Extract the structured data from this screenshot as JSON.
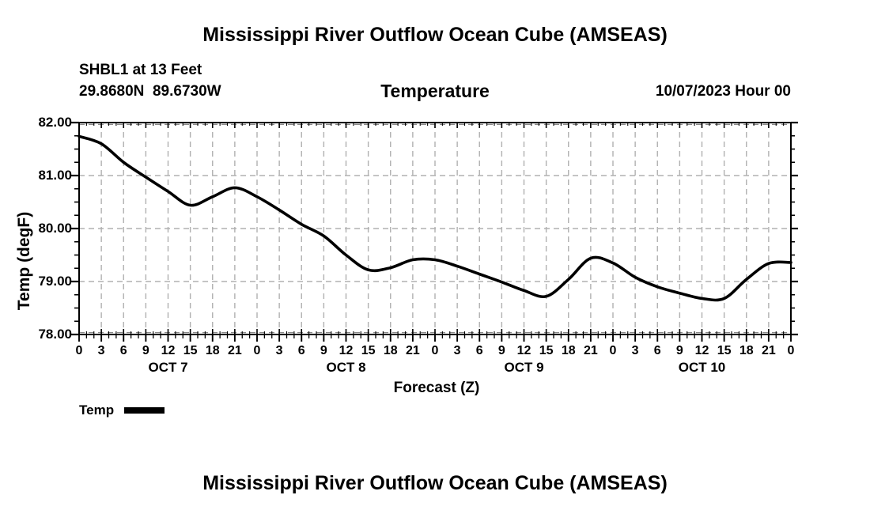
{
  "page": {
    "top_title": "Mississippi River Outflow Ocean Cube (AMSEAS)",
    "bottom_title": "Mississippi River Outflow Ocean Cube (AMSEAS)"
  },
  "header": {
    "station": "SHBL1 at 13 Feet",
    "coordinates": "29.8680N  89.6730W",
    "plot_title": "Temperature",
    "run_date": "10/07/2023 Hour 00"
  },
  "chart_data": {
    "type": "line",
    "title": "Temperature",
    "xlabel": "Forecast (Z)",
    "ylabel": "Temp (degF)",
    "xlim_hours": [
      0,
      96
    ],
    "ylim": [
      78.0,
      82.0
    ],
    "x_major_step_hours": 3,
    "x_minor_step_hours": 1,
    "y_major_step": 1.0,
    "y_minor_step": 0.25,
    "grid": true,
    "grid_color": "#b0b0b0",
    "line_color": "#000000",
    "legend_position": "bottom-left",
    "y_ticks": [
      {
        "value": 82.0,
        "label": "82.00"
      },
      {
        "value": 81.0,
        "label": "81.00"
      },
      {
        "value": 80.0,
        "label": "80.00"
      },
      {
        "value": 79.0,
        "label": "79.00"
      },
      {
        "value": 78.0,
        "label": "78.00"
      }
    ],
    "x_ticks": [
      {
        "hour": 0,
        "label": "0"
      },
      {
        "hour": 3,
        "label": "3"
      },
      {
        "hour": 6,
        "label": "6"
      },
      {
        "hour": 9,
        "label": "9"
      },
      {
        "hour": 12,
        "label": "12"
      },
      {
        "hour": 15,
        "label": "15"
      },
      {
        "hour": 18,
        "label": "18"
      },
      {
        "hour": 21,
        "label": "21"
      },
      {
        "hour": 24,
        "label": "0"
      },
      {
        "hour": 27,
        "label": "3"
      },
      {
        "hour": 30,
        "label": "6"
      },
      {
        "hour": 33,
        "label": "9"
      },
      {
        "hour": 36,
        "label": "12"
      },
      {
        "hour": 39,
        "label": "15"
      },
      {
        "hour": 42,
        "label": "18"
      },
      {
        "hour": 45,
        "label": "21"
      },
      {
        "hour": 48,
        "label": "0"
      },
      {
        "hour": 51,
        "label": "3"
      },
      {
        "hour": 54,
        "label": "6"
      },
      {
        "hour": 57,
        "label": "9"
      },
      {
        "hour": 60,
        "label": "12"
      },
      {
        "hour": 63,
        "label": "15"
      },
      {
        "hour": 66,
        "label": "18"
      },
      {
        "hour": 69,
        "label": "21"
      },
      {
        "hour": 72,
        "label": "0"
      },
      {
        "hour": 75,
        "label": "3"
      },
      {
        "hour": 78,
        "label": "6"
      },
      {
        "hour": 81,
        "label": "9"
      },
      {
        "hour": 84,
        "label": "12"
      },
      {
        "hour": 87,
        "label": "15"
      },
      {
        "hour": 90,
        "label": "18"
      },
      {
        "hour": 93,
        "label": "21"
      },
      {
        "hour": 96,
        "label": "0"
      }
    ],
    "day_labels": [
      {
        "label": "OCT 7",
        "center_hour": 12
      },
      {
        "label": "OCT 8",
        "center_hour": 36
      },
      {
        "label": "OCT 9",
        "center_hour": 60
      },
      {
        "label": "OCT 10",
        "center_hour": 84
      }
    ],
    "legend": [
      {
        "label": "Temp",
        "color": "#000000"
      }
    ],
    "series": [
      {
        "name": "Temp",
        "color": "#000000",
        "x_hours": [
          0,
          3,
          6,
          9,
          12,
          15,
          18,
          21,
          24,
          27,
          30,
          33,
          36,
          39,
          42,
          45,
          48,
          51,
          54,
          57,
          60,
          63,
          66,
          69,
          72,
          75,
          78,
          81,
          84,
          87,
          90,
          93,
          96
        ],
        "values": [
          81.74,
          81.6,
          81.25,
          80.97,
          80.7,
          80.44,
          80.6,
          80.77,
          80.6,
          80.35,
          80.08,
          79.86,
          79.5,
          79.22,
          79.26,
          79.41,
          79.41,
          79.29,
          79.14,
          78.99,
          78.83,
          78.72,
          79.04,
          79.44,
          79.35,
          79.08,
          78.9,
          78.78,
          78.68,
          78.68,
          79.04,
          79.34,
          79.36
        ]
      }
    ]
  }
}
